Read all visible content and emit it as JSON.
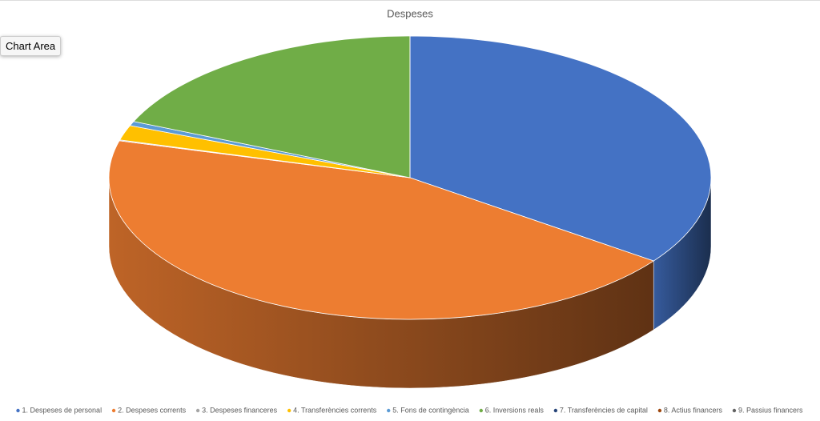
{
  "chart_data": {
    "type": "pie3d",
    "title": "Despeses",
    "categories": [
      "1. Despeses de personal",
      "2. Despeses corrents",
      "3. Despeses financeres",
      "4. Transferències corrents",
      "5. Fons de contingència",
      "6. Inversions reals",
      "7. Transferències de capital",
      "8. Actius financers",
      "9. Passius financers"
    ],
    "values": [
      35,
      44.2,
      0.1,
      1.7,
      0.5,
      18.5,
      0,
      0,
      0
    ],
    "colors": [
      "#4472c4",
      "#ed7d31",
      "#a5a5a5",
      "#ffc000",
      "#5b9bd5",
      "#70ad47",
      "#264478",
      "#9e480e",
      "#636363"
    ],
    "legend": "bottom"
  },
  "tooltip": "Chart Area"
}
